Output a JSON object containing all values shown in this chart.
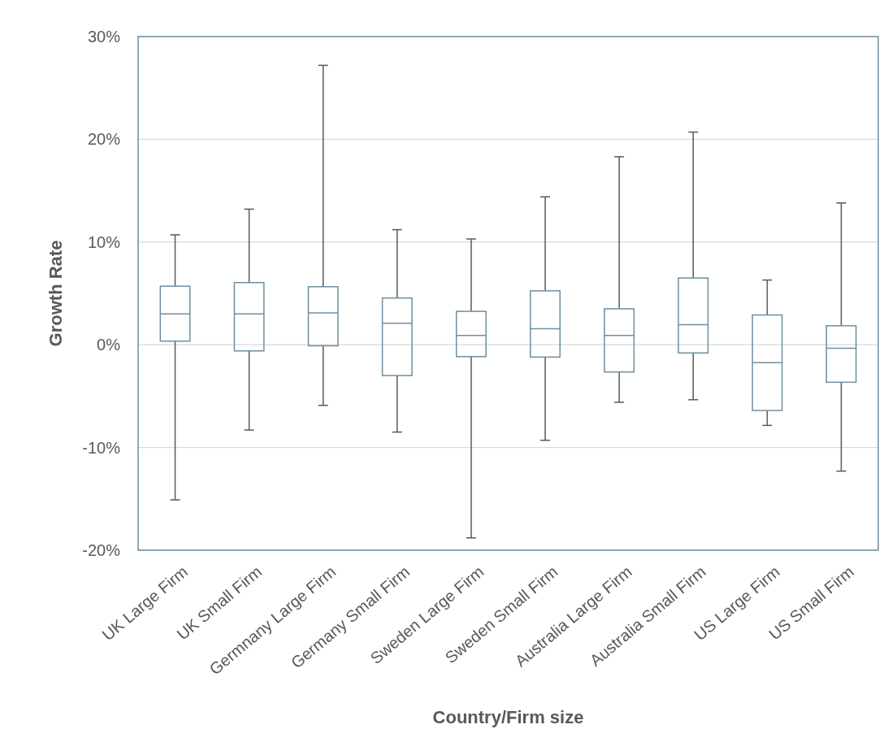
{
  "chart_data": {
    "type": "box",
    "xlabel": "Country/Firm size",
    "ylabel": "Growth Rate",
    "categories": [
      "UK Large Firm",
      "UK Small Firm",
      "Germnany Large Firm",
      "Germany Small Firm",
      "Sweden Large Firm",
      "Sweden Small Firm",
      "Australia Large Firm",
      "Australia Small Firm",
      "US Large Firm",
      "US Small Firm"
    ],
    "color": "#6e8fa0",
    "boxes": [
      {
        "low": -15.1,
        "q1": 0.35,
        "median": 3.0,
        "q3": 5.7,
        "high": 10.7
      },
      {
        "low": -8.3,
        "q1": -0.6,
        "median": 3.0,
        "q3": 6.05,
        "high": 13.2
      },
      {
        "low": -5.9,
        "q1": -0.1,
        "median": 3.1,
        "q3": 5.65,
        "high": 27.2
      },
      {
        "low": -8.5,
        "q1": -3.0,
        "median": 2.1,
        "q3": 4.55,
        "high": 11.2
      },
      {
        "low": -18.8,
        "q1": -1.15,
        "median": 0.9,
        "q3": 3.25,
        "high": 10.3
      },
      {
        "low": -9.3,
        "q1": -1.2,
        "median": 1.55,
        "q3": 5.25,
        "high": 14.4
      },
      {
        "low": -5.6,
        "q1": -2.65,
        "median": 0.9,
        "q3": 3.5,
        "high": 18.3
      },
      {
        "low": -5.35,
        "q1": -0.8,
        "median": 1.95,
        "q3": 6.5,
        "high": 20.7
      },
      {
        "low": -7.85,
        "q1": -6.4,
        "median": -1.75,
        "q3": 2.9,
        "high": 6.3
      },
      {
        "low": -12.3,
        "q1": -3.65,
        "median": -0.35,
        "q3": 1.85,
        "high": 13.8
      }
    ],
    "ylim": [
      -20,
      30
    ],
    "yticks": [
      {
        "value": -20,
        "label": "-20%"
      },
      {
        "value": -10,
        "label": "-10%"
      },
      {
        "value": 0,
        "label": "0%"
      },
      {
        "value": 10,
        "label": "10%"
      },
      {
        "value": 20,
        "label": "20%"
      },
      {
        "value": 30,
        "label": "30%"
      }
    ],
    "grid": "y"
  }
}
